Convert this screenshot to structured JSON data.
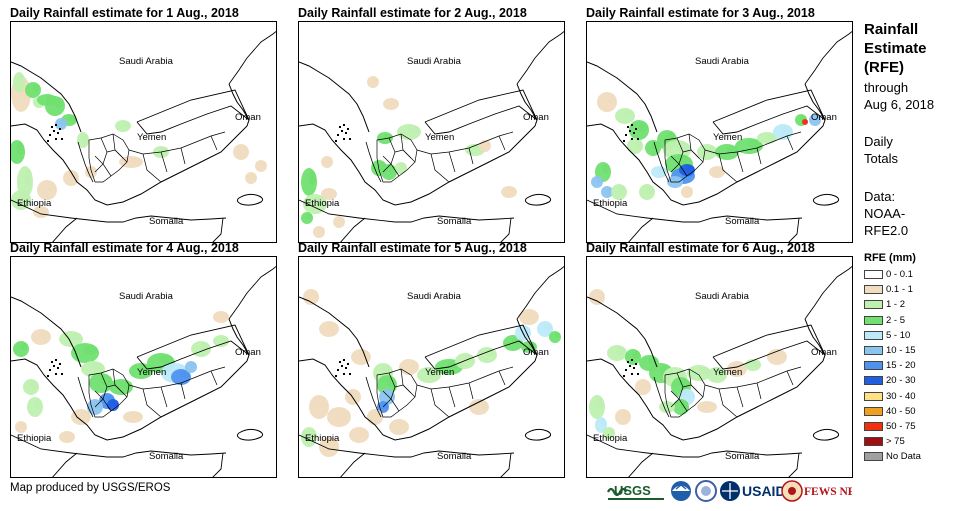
{
  "panels": [
    {
      "title": "Daily Rainfall estimate for 1 Aug., 2018",
      "rain": "p1"
    },
    {
      "title": "Daily Rainfall estimate for 2 Aug., 2018",
      "rain": "p2"
    },
    {
      "title": "Daily Rainfall estimate for 3 Aug., 2018",
      "rain": "p3"
    },
    {
      "title": "Daily Rainfall estimate for 4 Aug., 2018",
      "rain": "p4"
    },
    {
      "title": "Daily Rainfall estimate for 5 Aug., 2018",
      "rain": "p5"
    },
    {
      "title": "Daily Rainfall estimate for 6 Aug., 2018",
      "rain": "p6"
    }
  ],
  "map_labels": {
    "saudi": "Saudi Arabia",
    "oman": "Oman",
    "yemen": "Yemen",
    "ethiopia": "Ethiopia",
    "somalia": "Somalia"
  },
  "legend": {
    "title_lines": [
      "Rainfall",
      "Estimate",
      "(RFE)"
    ],
    "through_lines": [
      "through",
      "Aug 6, 2018"
    ],
    "daily_lines": [
      "Daily",
      "Totals"
    ],
    "data_lines": [
      "Data:",
      "NOAA-",
      "RFE2.0"
    ],
    "heading": "RFE (mm)",
    "items": [
      {
        "label": "0 - 0.1",
        "color": "#ffffff"
      },
      {
        "label": "0.1 - 1",
        "color": "#f0dcbf"
      },
      {
        "label": "1 - 2",
        "color": "#bff0b0"
      },
      {
        "label": "2 - 5",
        "color": "#70e070"
      },
      {
        "label": "5 - 10",
        "color": "#bdeaf8"
      },
      {
        "label": "10 - 15",
        "color": "#8cc4f0"
      },
      {
        "label": "15 - 20",
        "color": "#4f93ef"
      },
      {
        "label": "20 - 30",
        "color": "#1f5fe0"
      },
      {
        "label": "30 - 40",
        "color": "#ffe083"
      },
      {
        "label": "40 - 50",
        "color": "#f0a020"
      },
      {
        "label": "50 - 75",
        "color": "#f03010"
      },
      {
        "label": "> 75",
        "color": "#a01010"
      },
      {
        "label": "No Data",
        "color": "#a0a0a0"
      }
    ]
  },
  "credit": "Map produced by USGS/EROS",
  "logos": {
    "usgs": "USGS",
    "usaid": "USAID",
    "fewsnet": "FEWS NET"
  }
}
